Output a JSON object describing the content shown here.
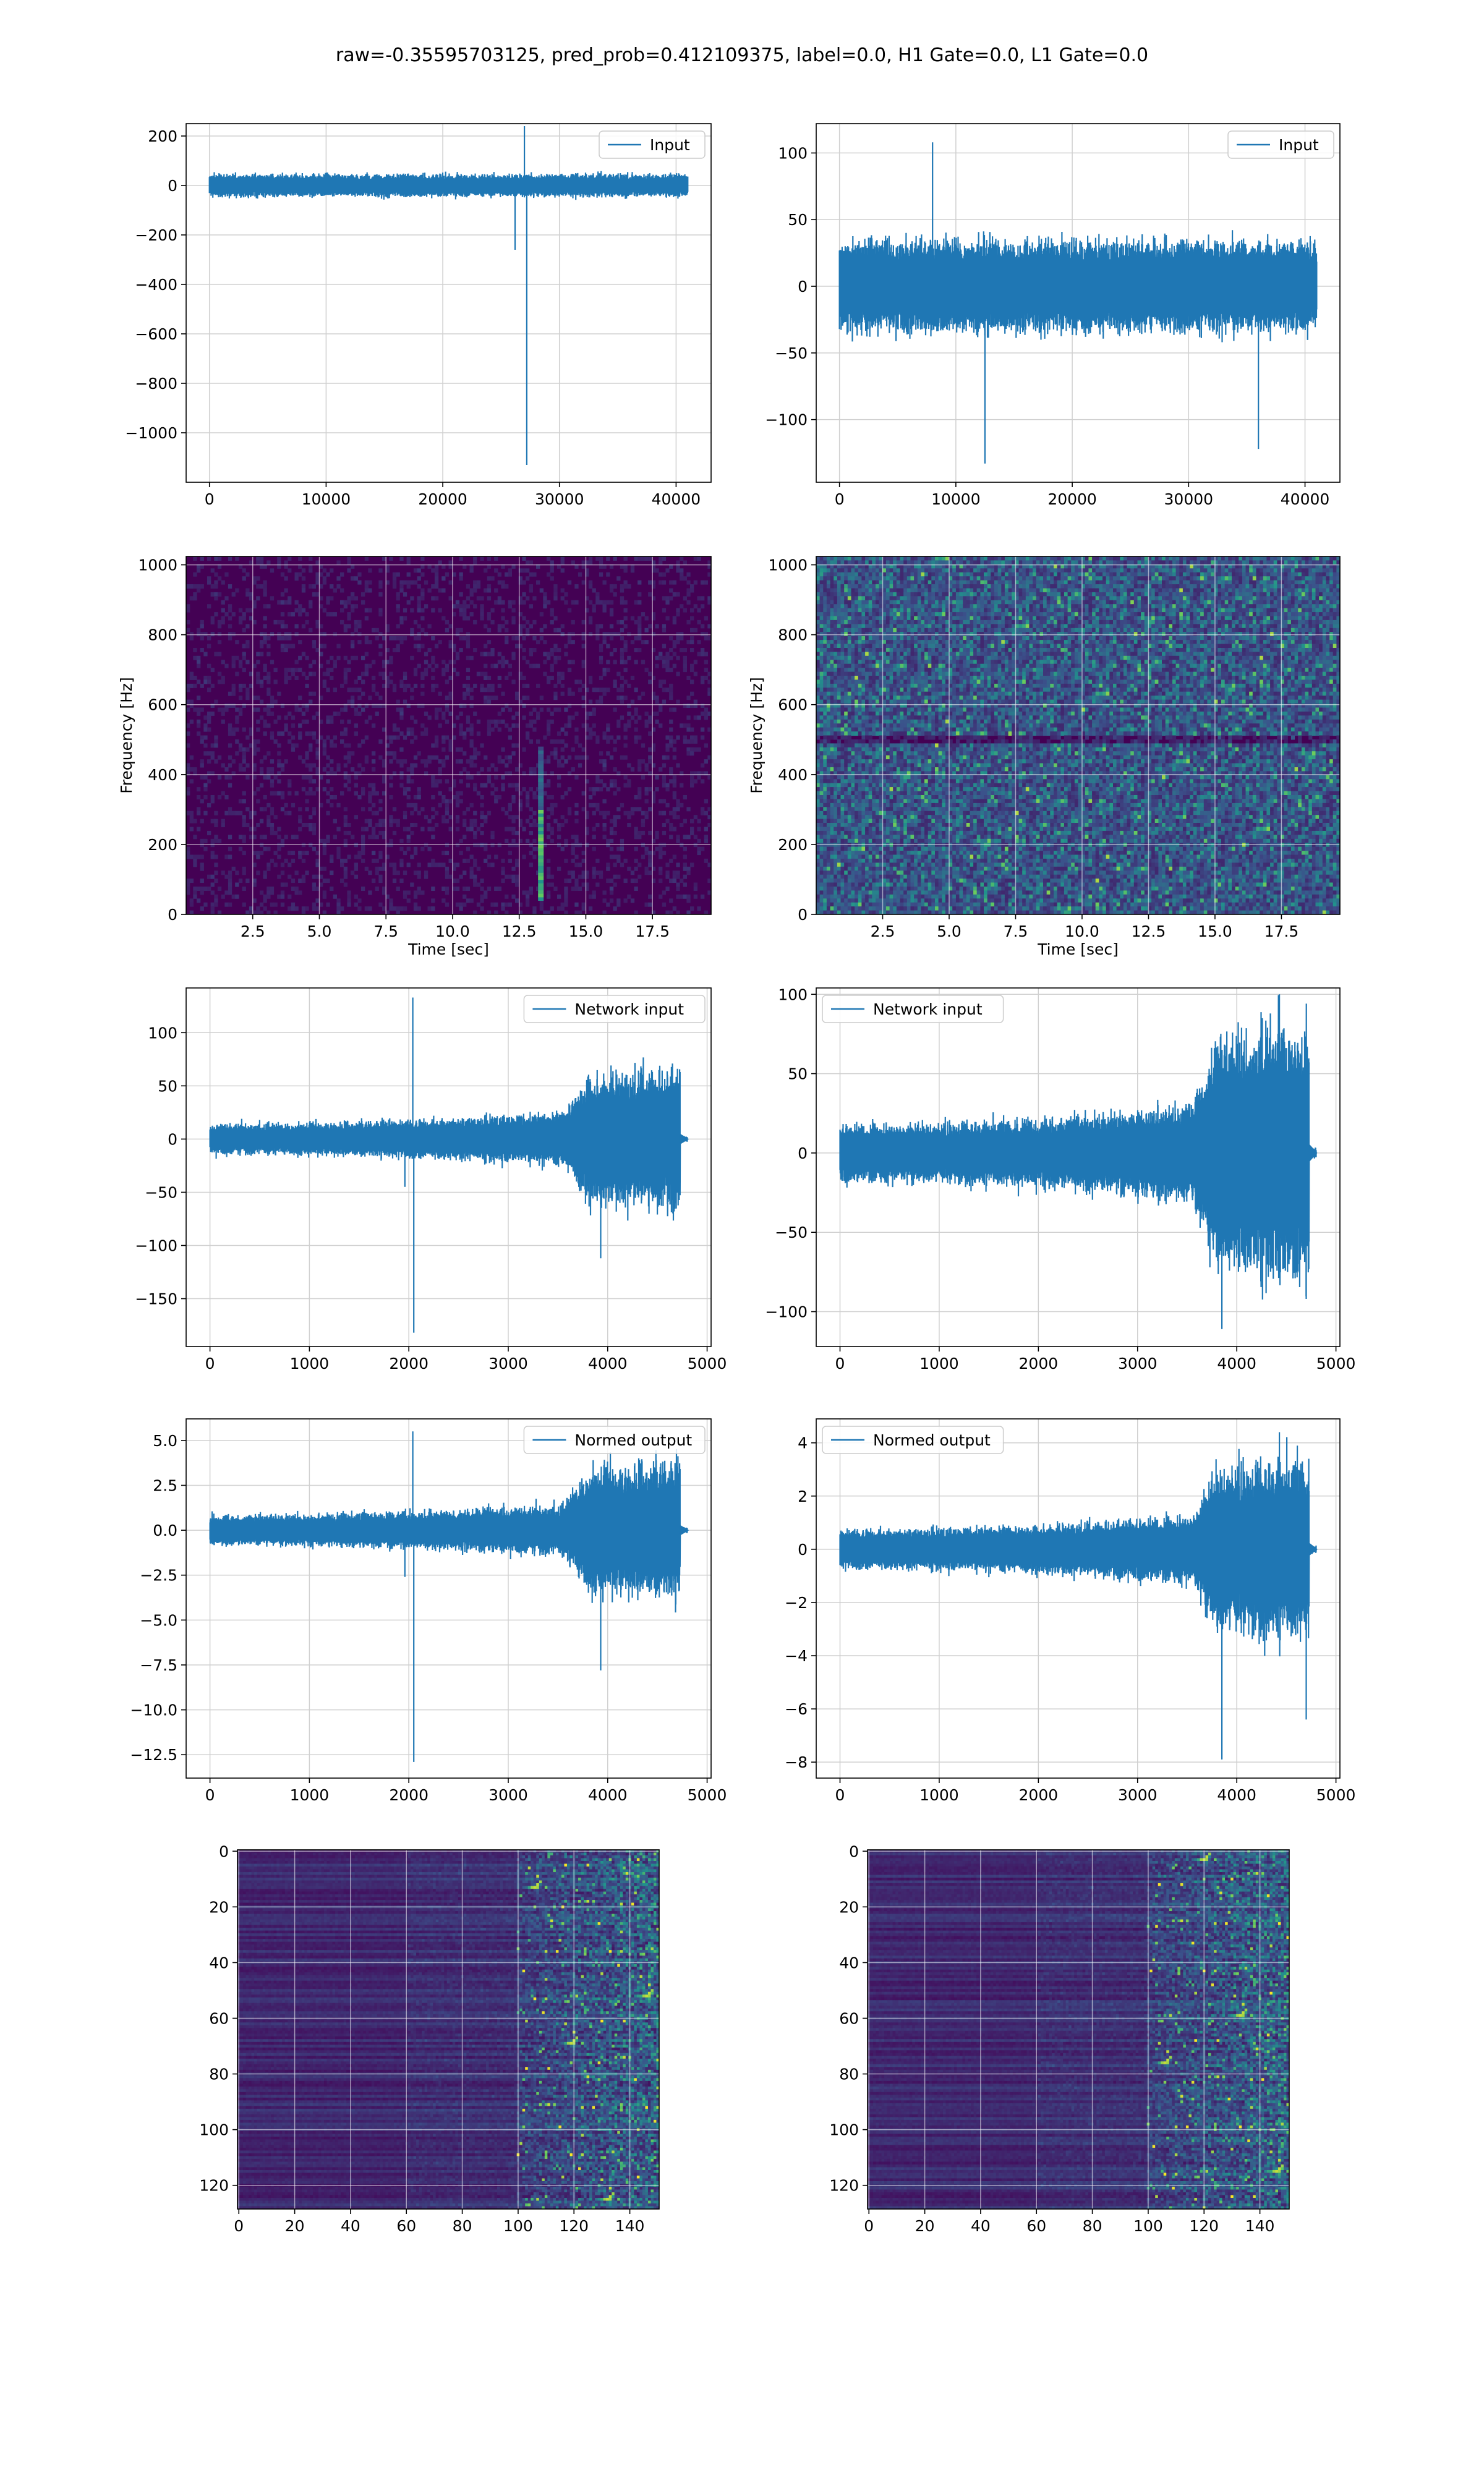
{
  "figure": {
    "title": "raw=-0.35595703125, pred_prob=0.412109375, label=0.0, H1 Gate=0.0, L1 Gate=0.0"
  },
  "colors": {
    "line": "#1f77b4",
    "grid": "#d0d0d0",
    "viridis_dark": "#440154",
    "viridis_mid": "#31688e",
    "viridis_green": "#35b779",
    "viridis_yellow": "#fde725"
  },
  "chart_data": [
    {
      "id": "h1-input",
      "type": "line",
      "legend": "Input",
      "legend_loc": "upper-right",
      "xlim": [
        -2000,
        43000
      ],
      "ylim": [
        -1200,
        250
      ],
      "xticks": [
        0,
        10000,
        20000,
        30000,
        40000
      ],
      "yticks": [
        200,
        0,
        -200,
        -400,
        -600,
        -800,
        -1000
      ],
      "series": {
        "n": 41000,
        "amplitude": 40,
        "envelope": "flat",
        "spikes": [
          [
            26200,
            -260
          ],
          [
            27000,
            240
          ],
          [
            27200,
            -1130
          ]
        ]
      }
    },
    {
      "id": "l1-input",
      "type": "line",
      "legend": "Input",
      "legend_loc": "upper-right",
      "xlim": [
        -2000,
        43000
      ],
      "ylim": [
        -147,
        122
      ],
      "xticks": [
        0,
        10000,
        20000,
        30000,
        40000
      ],
      "yticks": [
        100,
        50,
        0,
        -50,
        -100
      ],
      "series": {
        "n": 41000,
        "amplitude": 30,
        "envelope": "flat",
        "spikes": [
          [
            12500,
            -133
          ],
          [
            8000,
            108
          ],
          [
            36000,
            -122
          ]
        ]
      }
    },
    {
      "id": "h1-spectrogram",
      "type": "heatmap",
      "xlabel": "Time [sec]",
      "ylabel": "Frequency [Hz]",
      "xlim": [
        0,
        19.7
      ],
      "ylim": [
        0,
        1024
      ],
      "xticks": [
        "2.5",
        "5.0",
        "7.5",
        "10.0",
        "12.5",
        "15.0",
        "17.5"
      ],
      "yticks": [
        "0",
        "200",
        "400",
        "600",
        "800",
        "1000"
      ],
      "intensity": "low",
      "features": {
        "burst_time": 13.3,
        "burst_freq_range": [
          40,
          480
        ]
      }
    },
    {
      "id": "l1-spectrogram",
      "type": "heatmap",
      "xlabel": "Time [sec]",
      "ylabel": "Frequency [Hz]",
      "xlim": [
        0,
        19.7
      ],
      "ylim": [
        0,
        1024
      ],
      "xticks": [
        "2.5",
        "5.0",
        "7.5",
        "10.0",
        "12.5",
        "15.0",
        "17.5"
      ],
      "yticks": [
        "0",
        "200",
        "400",
        "600",
        "800",
        "1000"
      ],
      "intensity": "speckled",
      "features": {
        "line_freq": 500
      }
    },
    {
      "id": "h1-network-input",
      "type": "line",
      "legend": "Network input",
      "legend_loc": "upper-right",
      "xlim": [
        -240,
        5040
      ],
      "ylim": [
        -195,
        142
      ],
      "xticks": [
        0,
        1000,
        2000,
        3000,
        4000,
        5000
      ],
      "yticks": [
        100,
        50,
        0,
        -50,
        -100,
        -150
      ],
      "series": {
        "n": 4800,
        "amplitude": 45,
        "envelope": "ramp",
        "spikes": [
          [
            2040,
            133
          ],
          [
            2050,
            -182
          ],
          [
            1960,
            -45
          ],
          [
            3930,
            -112
          ]
        ]
      }
    },
    {
      "id": "l1-network-input",
      "type": "line",
      "legend": "Network input",
      "legend_loc": "upper-left",
      "xlim": [
        -240,
        5040
      ],
      "ylim": [
        -122,
        104
      ],
      "xticks": [
        0,
        1000,
        2000,
        3000,
        4000,
        5000
      ],
      "yticks": [
        100,
        50,
        0,
        -50,
        -100
      ],
      "series": {
        "n": 4800,
        "amplitude": 55,
        "envelope": "ramp",
        "spikes": [
          [
            3850,
            -111
          ],
          [
            4430,
            100
          ],
          [
            4700,
            -92
          ]
        ]
      }
    },
    {
      "id": "h1-normed-output",
      "type": "line",
      "legend": "Normed output",
      "legend_loc": "upper-right",
      "xlim": [
        -240,
        5040
      ],
      "ylim": [
        -13.8,
        6.2
      ],
      "xticks": [
        0,
        1000,
        2000,
        3000,
        4000,
        5000
      ],
      "yticks": [
        "5.0",
        "2.5",
        "0.0",
        "-2.5",
        "-5.0",
        "-7.5",
        "-10.0",
        "-12.5"
      ],
      "series": {
        "n": 4800,
        "amplitude": 2.6,
        "envelope": "ramp",
        "spikes": [
          [
            2040,
            5.5
          ],
          [
            2050,
            -12.9
          ],
          [
            1960,
            -2.6
          ],
          [
            3930,
            -7.8
          ]
        ]
      }
    },
    {
      "id": "l1-normed-output",
      "type": "line",
      "legend": "Normed output",
      "legend_loc": "upper-left",
      "xlim": [
        -240,
        5040
      ],
      "ylim": [
        -8.6,
        4.9
      ],
      "xticks": [
        0,
        1000,
        2000,
        3000,
        4000,
        5000
      ],
      "yticks": [
        4,
        2,
        0,
        -2,
        -4,
        -6,
        -8
      ],
      "series": {
        "n": 4800,
        "amplitude": 2.3,
        "envelope": "ramp",
        "spikes": [
          [
            3850,
            -7.9
          ],
          [
            4430,
            4.4
          ],
          [
            4700,
            -6.4
          ]
        ]
      }
    },
    {
      "id": "h1-feature-map",
      "type": "heatmap",
      "xlim": [
        -0.5,
        150.5
      ],
      "ylim": [
        128.5,
        -0.5
      ],
      "xticks": [
        0,
        20,
        40,
        60,
        80,
        100,
        120,
        140
      ],
      "yticks": [
        0,
        20,
        40,
        60,
        80,
        100,
        120
      ],
      "features": {
        "activity_from_col": 100
      }
    },
    {
      "id": "l1-feature-map",
      "type": "heatmap",
      "xlim": [
        -0.5,
        150.5
      ],
      "ylim": [
        128.5,
        -0.5
      ],
      "xticks": [
        0,
        20,
        40,
        60,
        80,
        100,
        120,
        140
      ],
      "yticks": [
        0,
        20,
        40,
        60,
        80,
        100,
        120
      ],
      "features": {
        "activity_from_col": 100
      }
    }
  ]
}
